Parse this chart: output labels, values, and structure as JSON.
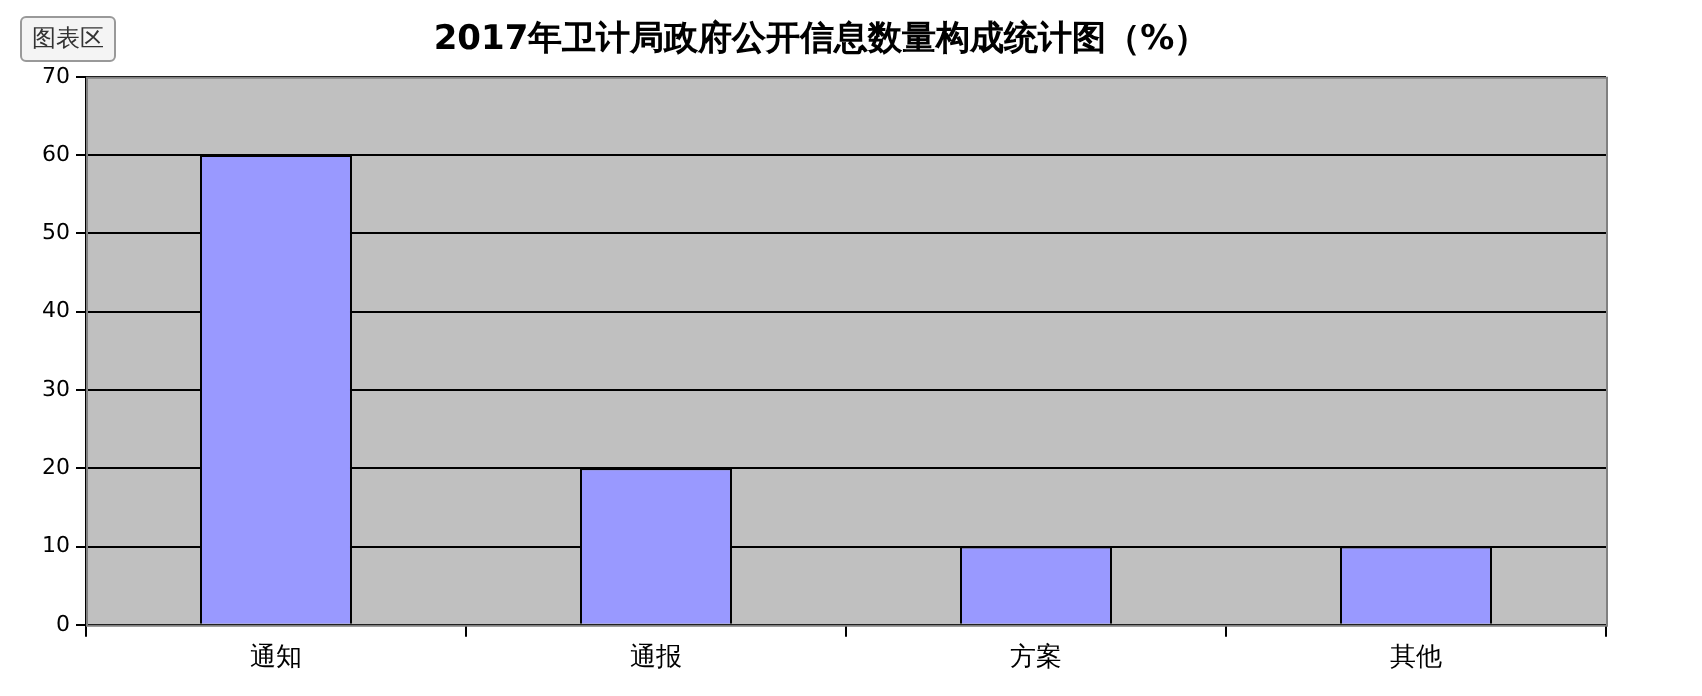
{
  "chart_data": {
    "type": "bar",
    "title": "2017年卫计局政府公开信息数量构成统计图（%）",
    "categories": [
      "通知",
      "通报",
      "方案",
      "其他"
    ],
    "values": [
      60,
      20,
      10,
      10
    ],
    "color": "#9999ff",
    "ylim": [
      0,
      70
    ],
    "yticks": [
      0,
      10,
      20,
      30,
      40,
      50,
      60,
      70
    ],
    "grid": "y",
    "legend": false,
    "annotations": [
      "图表区"
    ]
  }
}
